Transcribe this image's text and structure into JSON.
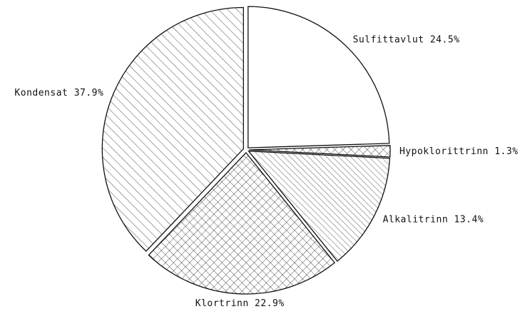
{
  "chart_data": {
    "type": "pie",
    "categories": [
      "Sulfittavlut",
      "Hypoklorittrinn",
      "Alkalitrinn",
      "Klortrinn",
      "Kondensat"
    ],
    "values": [
      24.5,
      1.3,
      13.4,
      22.9,
      37.9
    ],
    "value_labels": [
      "24.5%",
      "1.3%",
      "13.4%",
      "22.9%",
      "37.9%"
    ]
  }
}
